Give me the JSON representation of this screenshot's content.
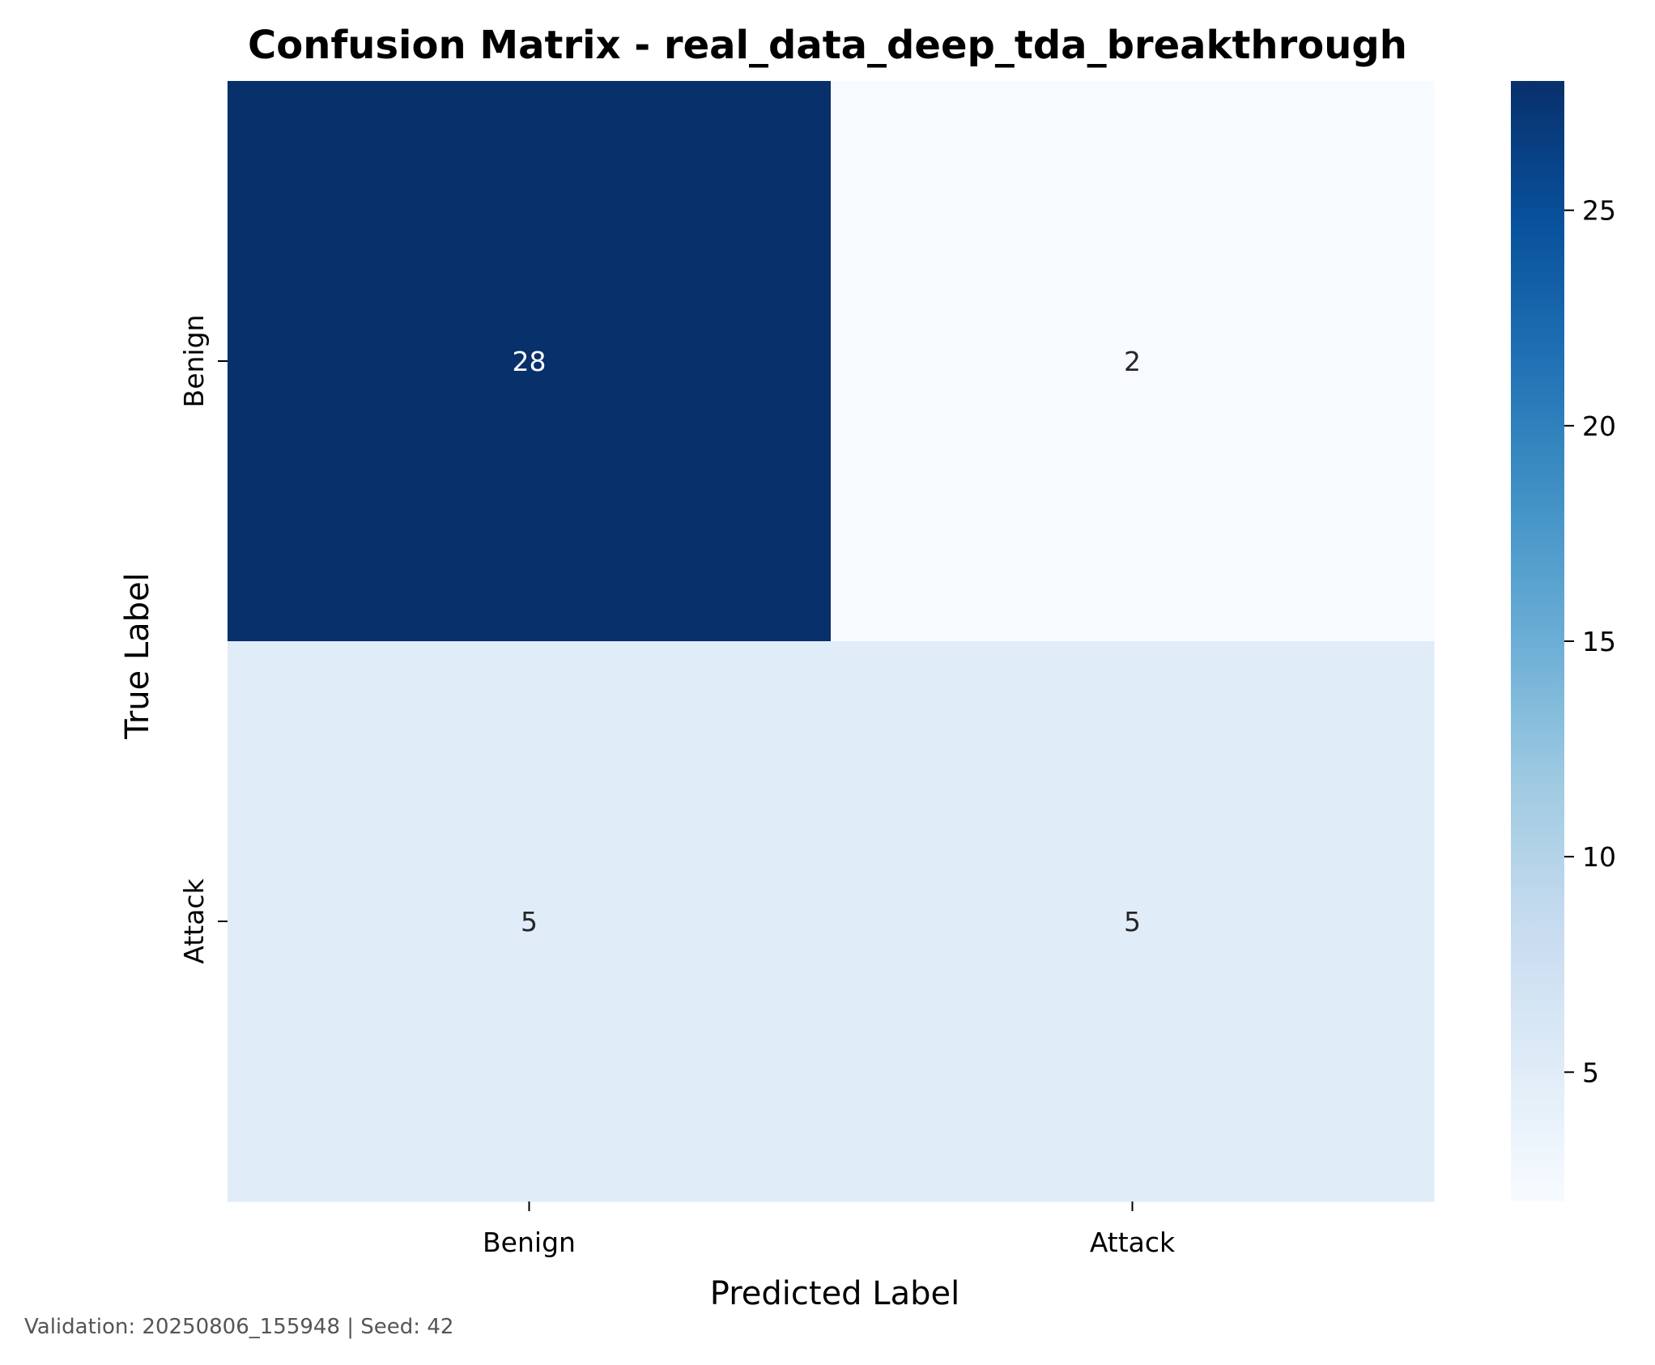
{
  "chart_data": {
    "type": "heatmap",
    "title": "Confusion Matrix - real_data_deep_tda_breakthrough",
    "xlabel": "Predicted Label",
    "ylabel": "True Label",
    "x_categories": [
      "Benign",
      "Attack"
    ],
    "y_categories": [
      "Benign",
      "Attack"
    ],
    "values": [
      [
        28,
        2
      ],
      [
        5,
        5
      ]
    ],
    "colormap": "Blues",
    "color_min": 2,
    "color_max": 28,
    "colorbar_ticks": [
      5,
      10,
      15,
      20,
      25
    ],
    "colorbar_tick_labels": [
      "5",
      "10",
      "15",
      "20",
      "25"
    ],
    "annotation_colors": {
      "dark": "#ffffff",
      "light": "#262626"
    }
  },
  "footer": {
    "text": "Validation: 20250806_155948 | Seed: 42"
  }
}
